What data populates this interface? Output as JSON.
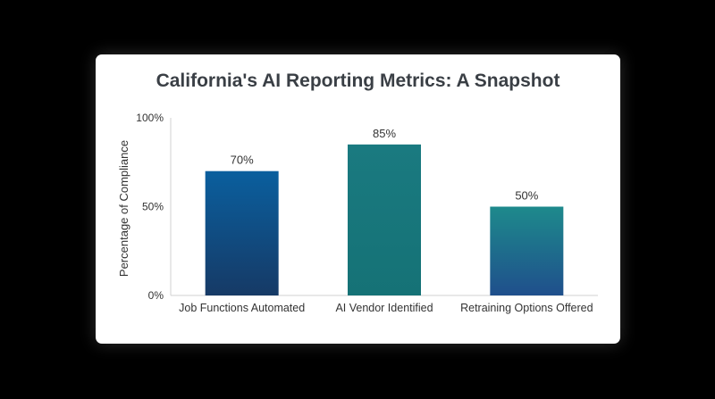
{
  "chart_data": {
    "type": "bar",
    "title": "California's AI Reporting Metrics: A Snapshot",
    "xlabel": "",
    "ylabel": "Percentage of Compliance",
    "categories": [
      "Job Functions Automated",
      "AI Vendor Identified",
      "Retraining Options Offered"
    ],
    "values": [
      70,
      85,
      50
    ],
    "data_labels": [
      "70%",
      "85%",
      "50%"
    ],
    "ylim": [
      0,
      100
    ],
    "yticks": [
      0,
      50,
      100
    ],
    "ytick_labels": [
      "0%",
      "50%",
      "100%"
    ],
    "grid": false,
    "legend": "none",
    "colors": {
      "bars": [
        [
          "#0a5f9e",
          "#163a66"
        ],
        [
          "#1a7a80",
          "#157276"
        ],
        [
          "#1e8a8c",
          "#1f4f8c"
        ]
      ],
      "axis": "#d0d0d0",
      "text": "#333333",
      "title": "#3a3f45"
    }
  }
}
